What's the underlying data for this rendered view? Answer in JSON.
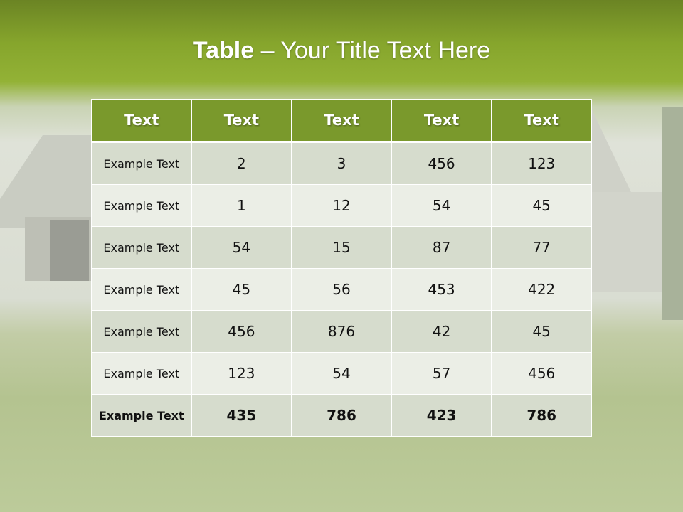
{
  "title": {
    "bold": "Table",
    "rest": " – Your Title Text Here"
  },
  "table": {
    "headers": [
      "Text",
      "Text",
      "Text",
      "Text",
      "Text"
    ],
    "rows": [
      [
        "Example Text",
        "2",
        "3",
        "456",
        "123"
      ],
      [
        "Example Text",
        "1",
        "12",
        "54",
        "45"
      ],
      [
        "Example Text",
        "54",
        "15",
        "87",
        "77"
      ],
      [
        "Example Text",
        "45",
        "56",
        "453",
        "422"
      ],
      [
        "Example Text",
        "456",
        "876",
        "42",
        "45"
      ],
      [
        "Example Text",
        "123",
        "54",
        "57",
        "456"
      ],
      [
        "Example Text",
        "435",
        "786",
        "423",
        "786"
      ]
    ]
  },
  "colors": {
    "header": "#7a992c",
    "row_dark": "#d6dccd",
    "row_light": "#ebeee6"
  }
}
